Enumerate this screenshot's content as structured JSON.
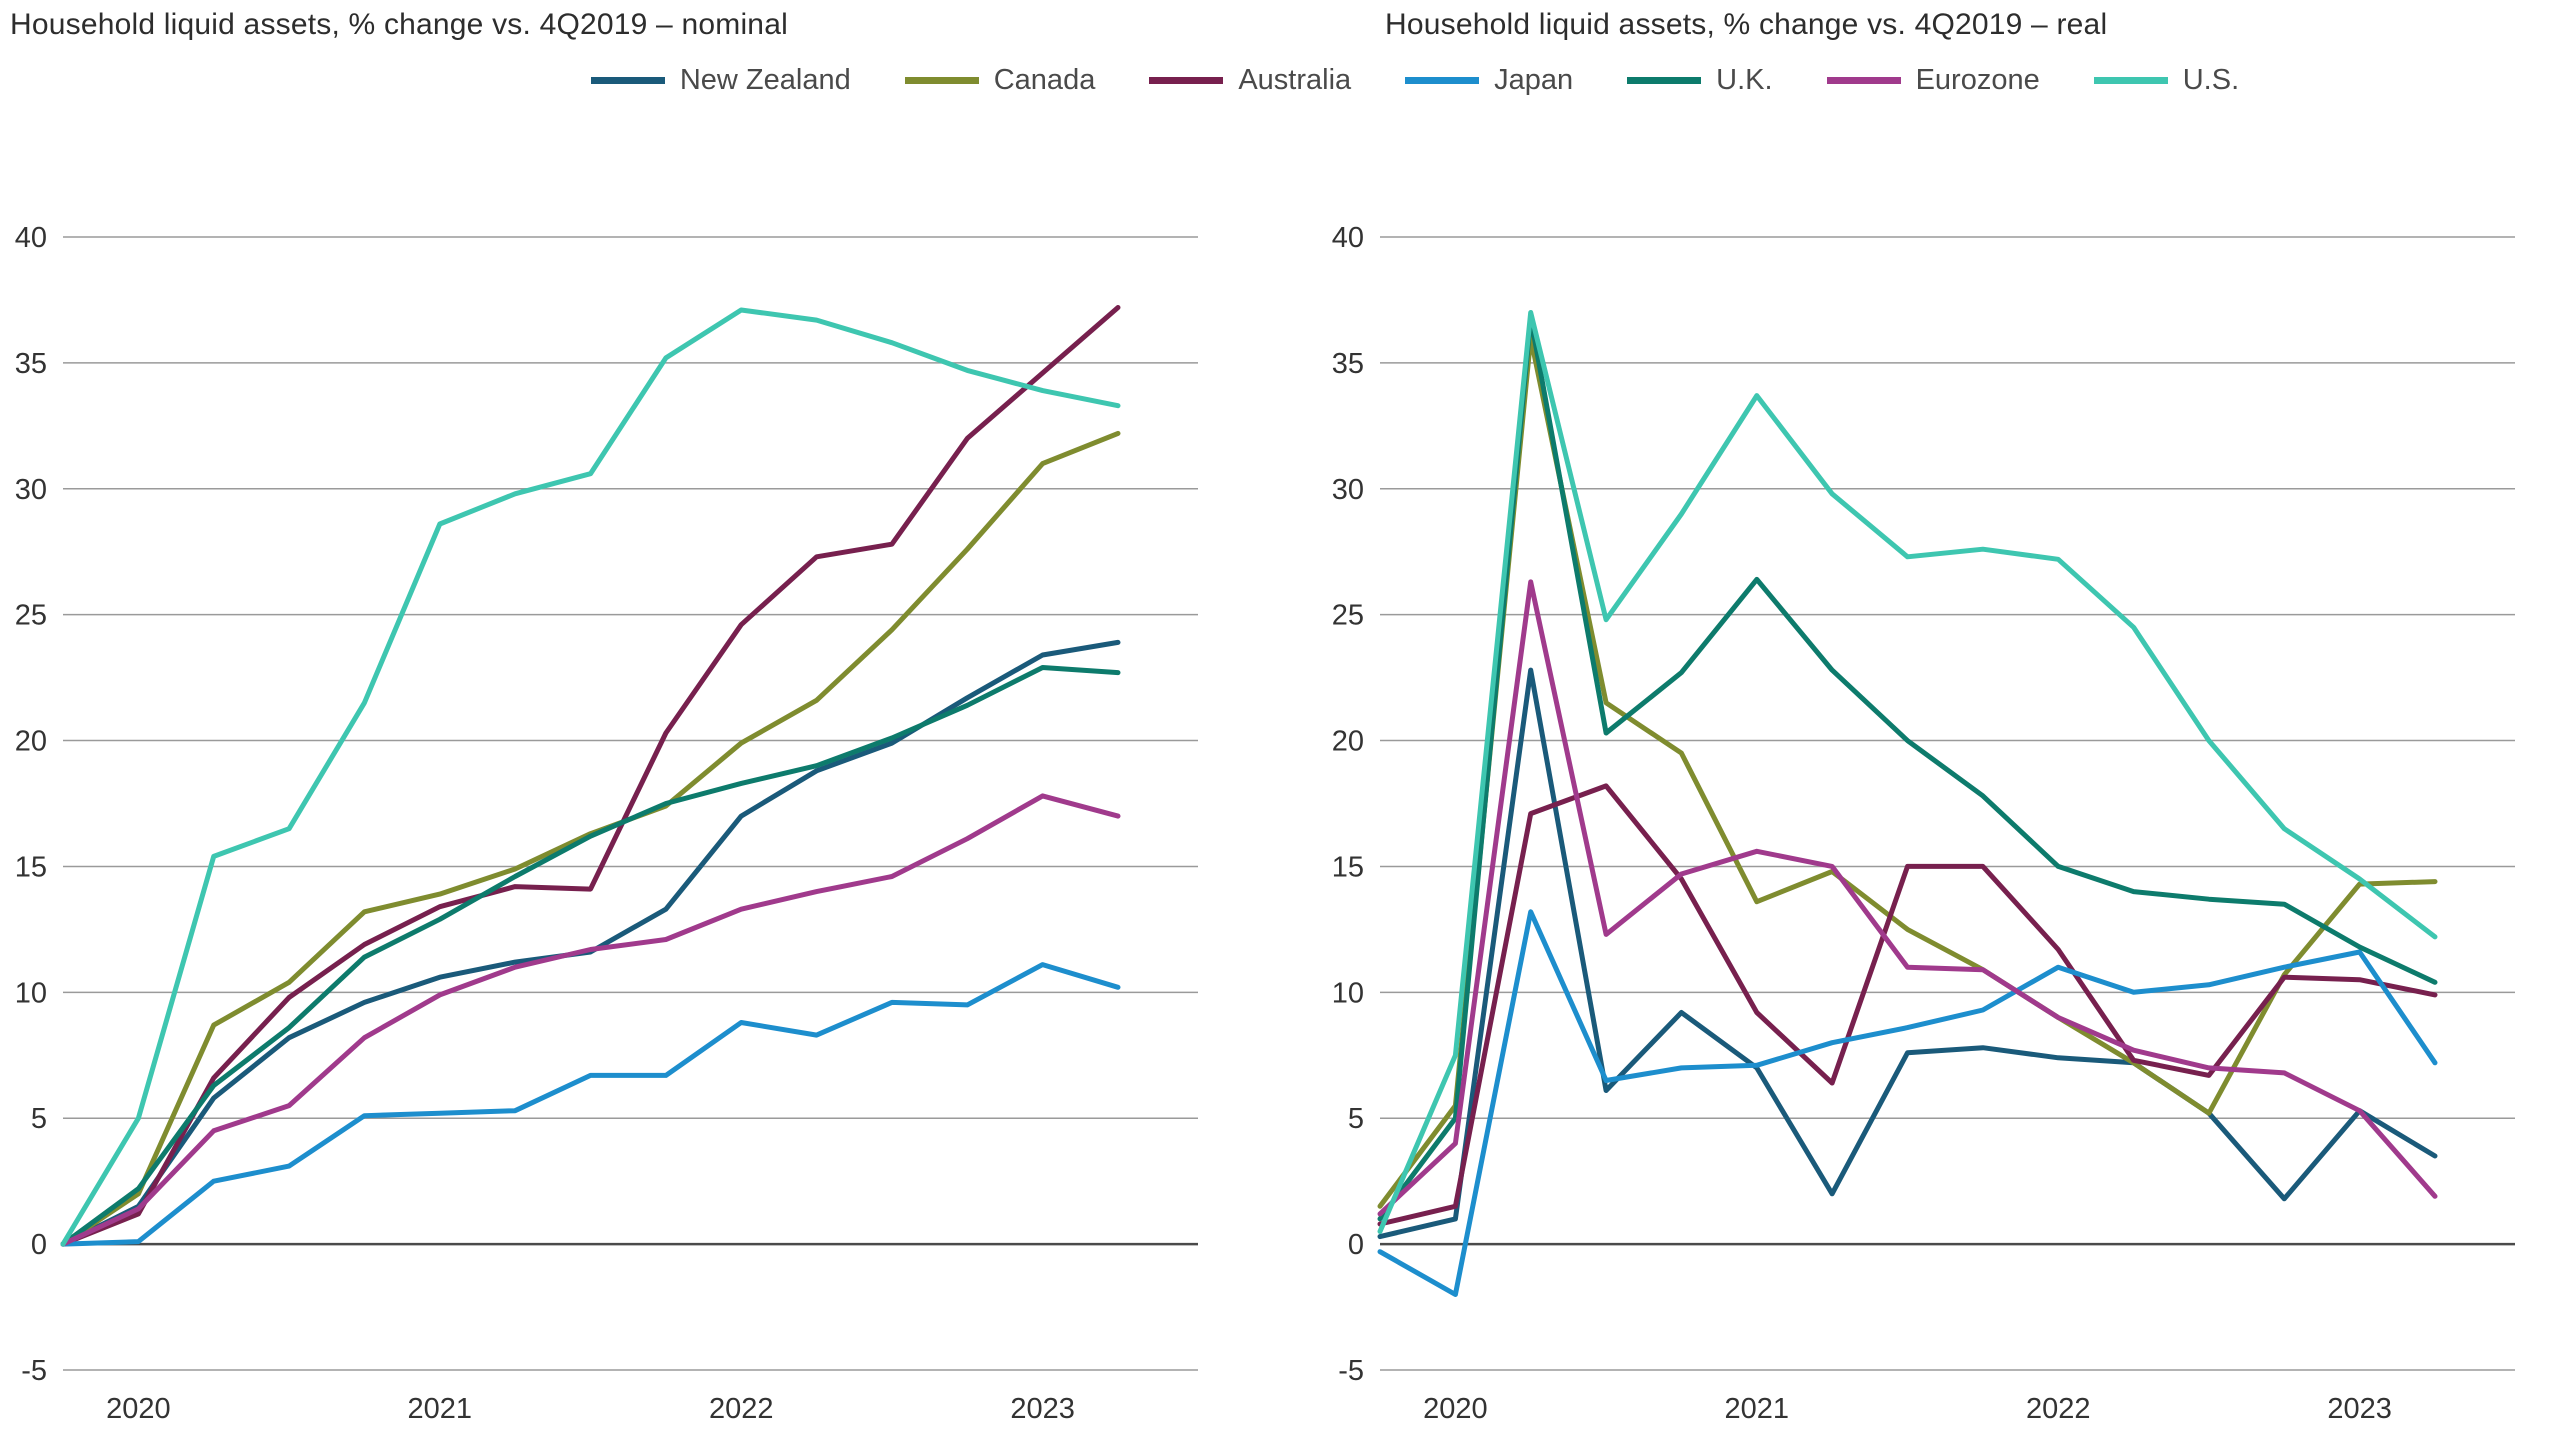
{
  "page": {
    "background": "#ffffff",
    "grid_color": "#9a9a9a",
    "zero_line_color": "#4a4a4a",
    "tick_label_color": "#333333"
  },
  "chart_data": [
    {
      "type": "line",
      "title": "Household liquid assets, % change vs. 4Q2019 – nominal",
      "x": [
        "4Q2019",
        "1Q2020",
        "2Q2020",
        "3Q2020",
        "4Q2020",
        "1Q2021",
        "2Q2021",
        "3Q2021",
        "4Q2021",
        "1Q2022",
        "2Q2022",
        "3Q2022",
        "4Q2022",
        "1Q2023",
        "2Q2023"
      ],
      "x_tick_labels": [
        "2020",
        "2021",
        "2022",
        "2023"
      ],
      "x_tick_positions": [
        1,
        5,
        9,
        13
      ],
      "ylim": [
        -5,
        40
      ],
      "ytick_step": 5,
      "grid": true,
      "legend_position": "top",
      "series": [
        {
          "name": "New Zealand",
          "color": "#1a5a7a",
          "values": [
            0,
            1.5,
            5.8,
            8.2,
            9.6,
            10.6,
            11.2,
            11.6,
            13.3,
            17.0,
            18.8,
            19.9,
            21.7,
            23.4,
            23.9
          ]
        },
        {
          "name": "Canada",
          "color": "#7f8c2f",
          "values": [
            0,
            2.0,
            8.7,
            10.4,
            13.2,
            13.9,
            14.9,
            16.3,
            17.4,
            19.9,
            21.6,
            24.4,
            27.6,
            31.0,
            32.2
          ]
        },
        {
          "name": "Australia",
          "color": "#77204e",
          "values": [
            0,
            1.2,
            6.6,
            9.8,
            11.9,
            13.4,
            14.2,
            14.1,
            20.3,
            24.6,
            27.3,
            27.8,
            32.0,
            34.6,
            37.2
          ]
        },
        {
          "name": "Japan",
          "color": "#1d8ecd",
          "values": [
            0,
            0.1,
            2.5,
            3.1,
            5.1,
            5.2,
            5.3,
            6.7,
            6.7,
            8.8,
            8.3,
            9.6,
            9.5,
            11.1,
            10.2
          ]
        },
        {
          "name": "U.K.",
          "color": "#0d7b6c",
          "values": [
            0,
            2.2,
            6.3,
            8.6,
            11.4,
            12.9,
            14.6,
            16.2,
            17.5,
            18.3,
            19.0,
            20.1,
            21.4,
            22.9,
            22.7
          ]
        },
        {
          "name": "Eurozone",
          "color": "#a03a8c",
          "values": [
            0,
            1.4,
            4.5,
            5.5,
            8.2,
            9.9,
            11.0,
            11.7,
            12.1,
            13.3,
            14.0,
            14.6,
            16.1,
            17.8,
            17.0
          ]
        },
        {
          "name": "U.S.",
          "color": "#3ec6b0",
          "values": [
            0,
            5.0,
            15.4,
            16.5,
            21.5,
            28.6,
            29.8,
            30.6,
            35.2,
            37.1,
            36.7,
            35.8,
            34.7,
            33.9,
            33.3
          ]
        }
      ]
    },
    {
      "type": "line",
      "title": "Household liquid assets, % change vs. 4Q2019 – real",
      "x": [
        "4Q2019",
        "1Q2020",
        "2Q2020",
        "3Q2020",
        "4Q2020",
        "1Q2021",
        "2Q2021",
        "3Q2021",
        "4Q2021",
        "1Q2022",
        "2Q2022",
        "3Q2022",
        "4Q2022",
        "1Q2023",
        "2Q2023"
      ],
      "x_tick_labels": [
        "2020",
        "2021",
        "2022",
        "2023"
      ],
      "x_tick_positions": [
        1,
        5,
        9,
        13
      ],
      "ylim": [
        -5,
        40
      ],
      "ytick_step": 5,
      "grid": true,
      "legend_position": "top",
      "series": [
        {
          "name": "New Zealand",
          "color": "#1a5a7a",
          "values": [
            0.3,
            1.0,
            22.8,
            6.1,
            9.2,
            7.0,
            2.0,
            7.6,
            7.8,
            7.4,
            7.2,
            5.2,
            1.8,
            5.3,
            3.5
          ]
        },
        {
          "name": "Canada",
          "color": "#7f8c2f",
          "values": [
            1.5,
            5.5,
            36.0,
            21.5,
            19.5,
            13.6,
            14.8,
            12.5,
            10.9,
            9.0,
            7.2,
            5.2,
            10.7,
            14.3,
            14.4
          ]
        },
        {
          "name": "Australia",
          "color": "#77204e",
          "values": [
            0.8,
            1.5,
            17.1,
            18.2,
            14.5,
            9.2,
            6.4,
            15.0,
            15.0,
            11.7,
            7.3,
            6.7,
            10.6,
            10.5,
            9.9
          ]
        },
        {
          "name": "Japan",
          "color": "#1d8ecd",
          "values": [
            -0.3,
            -2.0,
            13.2,
            6.5,
            7.0,
            7.1,
            8.0,
            8.6,
            9.3,
            11.0,
            10.0,
            10.3,
            11.0,
            11.6,
            7.2
          ]
        },
        {
          "name": "U.K.",
          "color": "#0d7b6c",
          "values": [
            1.0,
            5.0,
            36.8,
            20.3,
            22.7,
            26.4,
            22.8,
            20.0,
            17.8,
            15.0,
            14.0,
            13.7,
            13.5,
            11.8,
            10.4
          ]
        },
        {
          "name": "Eurozone",
          "color": "#a03a8c",
          "values": [
            1.2,
            4.0,
            26.3,
            12.3,
            14.7,
            15.6,
            15.0,
            11.0,
            10.9,
            9.0,
            7.7,
            7.0,
            6.8,
            5.3,
            1.9
          ]
        },
        {
          "name": "U.S.",
          "color": "#3ec6b0",
          "values": [
            0.5,
            7.5,
            37.0,
            24.8,
            29.0,
            33.7,
            29.8,
            27.3,
            27.6,
            27.2,
            24.5,
            20.0,
            16.5,
            14.5,
            12.2
          ]
        }
      ]
    }
  ]
}
